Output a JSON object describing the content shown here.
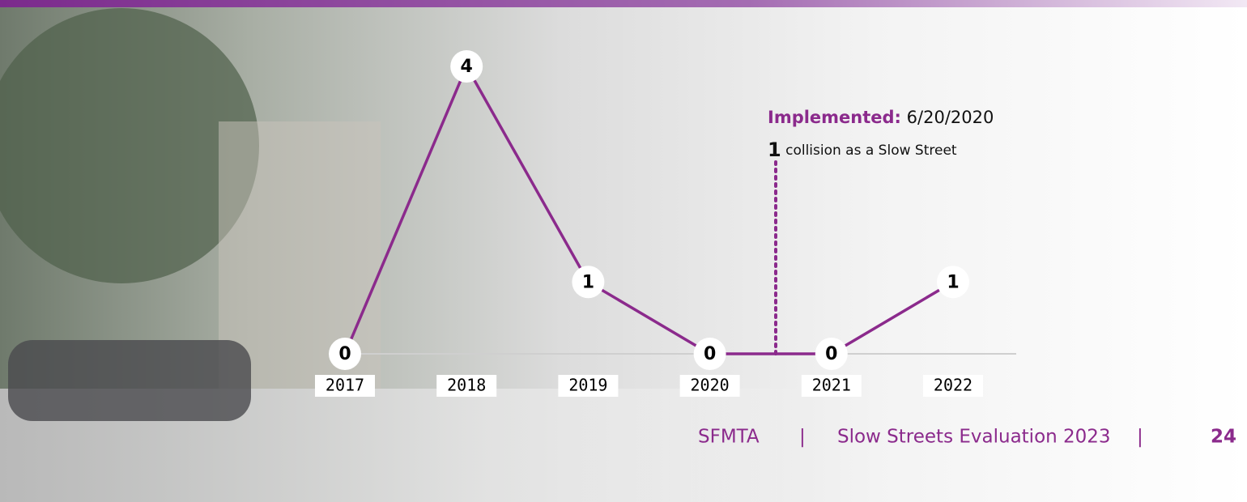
{
  "chart_data": {
    "type": "line",
    "categories": [
      "2017",
      "2018",
      "2019",
      "2020",
      "2021",
      "2022"
    ],
    "values": [
      0,
      4,
      1,
      0,
      0,
      1
    ],
    "color": "#8b2a8c",
    "ylim": [
      0,
      4
    ],
    "annotation": {
      "label": "Implemented:",
      "date": "6/20/2020",
      "count": "1",
      "text": "collision as a Slow Street"
    }
  },
  "footer": {
    "org": "SFMTA",
    "separator": "|",
    "title": "Slow Streets Evaluation 2023",
    "page": "24"
  }
}
